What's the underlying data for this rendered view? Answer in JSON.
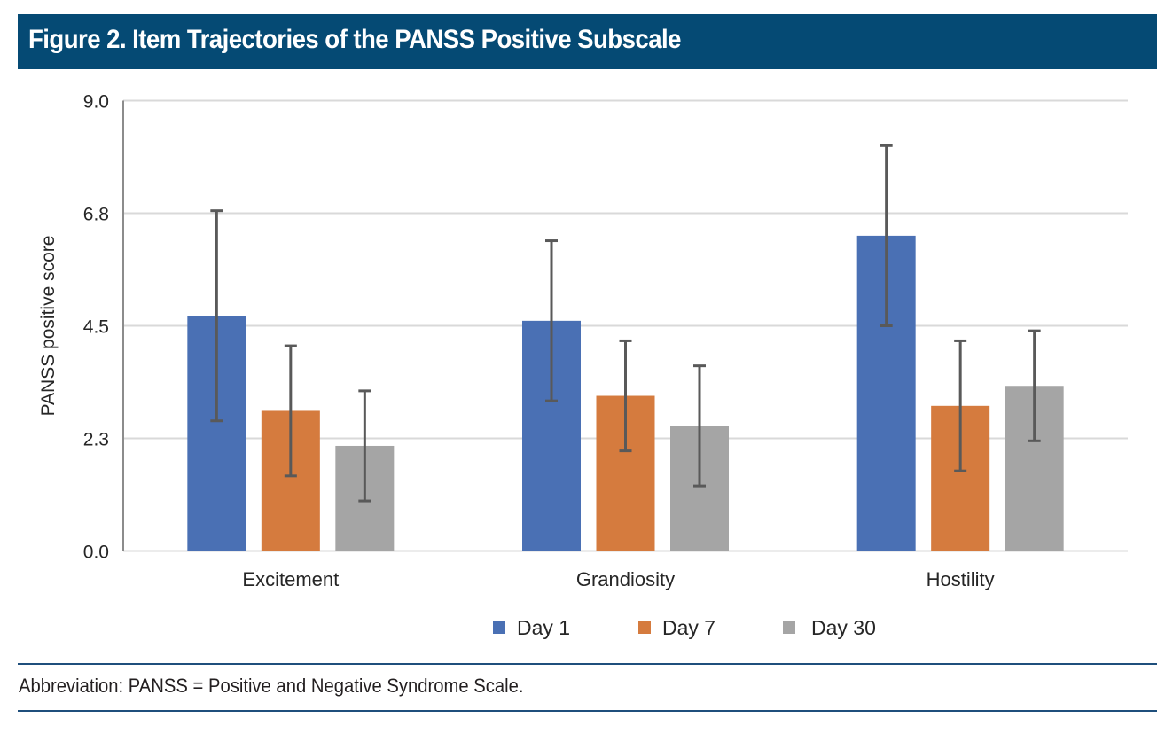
{
  "header": {
    "title": "Figure 2. Item Trajectories of the PANSS Positive Subscale",
    "background": "#054a74"
  },
  "footer": {
    "abbreviation": "Abbreviation: PANSS = Positive and Negative Syndrome Scale."
  },
  "chart_data": {
    "type": "bar",
    "title": "Figure 2. Item Trajectories of the PANSS Positive Subscale",
    "xlabel": "",
    "ylabel": "PANSS positive score",
    "ylim": [
      0,
      9
    ],
    "yticks": [
      0,
      2.25,
      4.5,
      6.75,
      9
    ],
    "ytick_labels": [
      "0.0",
      "2.3",
      "4.5",
      "6.8",
      "9.0"
    ],
    "grid": true,
    "legend_position": "bottom",
    "categories": [
      "Excitement",
      "Grandiosity",
      "Hostility"
    ],
    "series": [
      {
        "name": "Day 1",
        "color": "#4a70b4",
        "values": [
          4.7,
          4.6,
          6.3
        ],
        "error_low": [
          2.6,
          3.0,
          4.5
        ],
        "error_high": [
          6.8,
          6.2,
          8.1
        ]
      },
      {
        "name": "Day 7",
        "color": "#d57b3e",
        "values": [
          2.8,
          3.1,
          2.9
        ],
        "error_low": [
          1.5,
          2.0,
          1.6
        ],
        "error_high": [
          4.1,
          4.2,
          4.2
        ]
      },
      {
        "name": "Day 30",
        "color": "#a5a5a5",
        "values": [
          2.1,
          2.5,
          3.3
        ],
        "error_low": [
          1.0,
          1.3,
          2.2
        ],
        "error_high": [
          3.2,
          3.7,
          4.4
        ]
      }
    ],
    "error_bar_color": "#595959"
  }
}
